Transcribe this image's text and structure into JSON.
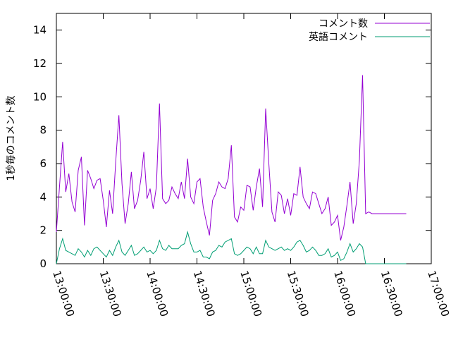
{
  "chart_data": {
    "type": "line",
    "ylabel": "1秒毎のコメント数",
    "xlim": [
      "13:00:00",
      "17:00:00"
    ],
    "ylim": [
      0,
      15
    ],
    "xticks": [
      "13:00:00",
      "13:30:00",
      "14:00:00",
      "14:30:00",
      "15:00:00",
      "15:30:00",
      "16:00:00",
      "16:30:00",
      "17:00:00"
    ],
    "yticks": [
      0,
      2,
      4,
      6,
      8,
      10,
      12,
      14
    ],
    "grid": false,
    "legend_position": "top-right",
    "x": [
      "13:00:00",
      "13:02:00",
      "13:04:00",
      "13:06:00",
      "13:08:00",
      "13:10:00",
      "13:12:00",
      "13:14:00",
      "13:16:00",
      "13:18:00",
      "13:20:00",
      "13:22:00",
      "13:24:00",
      "13:26:00",
      "13:28:00",
      "13:30:00",
      "13:32:00",
      "13:34:00",
      "13:36:00",
      "13:38:00",
      "13:40:00",
      "13:42:00",
      "13:44:00",
      "13:46:00",
      "13:48:00",
      "13:50:00",
      "13:52:00",
      "13:54:00",
      "13:56:00",
      "13:58:00",
      "14:00:00",
      "14:02:00",
      "14:04:00",
      "14:06:00",
      "14:08:00",
      "14:10:00",
      "14:12:00",
      "14:14:00",
      "14:16:00",
      "14:18:00",
      "14:20:00",
      "14:22:00",
      "14:24:00",
      "14:26:00",
      "14:28:00",
      "14:30:00",
      "14:32:00",
      "14:34:00",
      "14:36:00",
      "14:38:00",
      "14:40:00",
      "14:42:00",
      "14:44:00",
      "14:46:00",
      "14:48:00",
      "14:50:00",
      "14:52:00",
      "14:54:00",
      "14:56:00",
      "14:58:00",
      "15:00:00",
      "15:02:00",
      "15:04:00",
      "15:06:00",
      "15:08:00",
      "15:10:00",
      "15:12:00",
      "15:14:00",
      "15:16:00",
      "15:18:00",
      "15:20:00",
      "15:22:00",
      "15:24:00",
      "15:26:00",
      "15:28:00",
      "15:30:00",
      "15:32:00",
      "15:34:00",
      "15:36:00",
      "15:38:00",
      "15:40:00",
      "15:42:00",
      "15:44:00",
      "15:46:00",
      "15:48:00",
      "15:50:00",
      "15:52:00",
      "15:54:00",
      "15:56:00",
      "15:58:00",
      "16:00:00",
      "16:02:00",
      "16:04:00",
      "16:06:00",
      "16:08:00",
      "16:10:00",
      "16:12:00",
      "16:14:00",
      "16:16:00",
      "16:18:00",
      "16:20:00",
      "16:22:00",
      "16:24:00",
      "16:26:00",
      "16:28:00",
      "16:30:00",
      "16:32:00",
      "16:34:00",
      "16:36:00",
      "16:38:00",
      "16:40:00",
      "16:42:00",
      "16:44:00"
    ],
    "series": [
      {
        "name": "コメント数",
        "color": "#9400d3",
        "values": [
          1.9,
          4.6,
          7.3,
          4.3,
          5.4,
          3.7,
          3.1,
          5.6,
          6.4,
          2.3,
          5.6,
          5.1,
          4.5,
          5.0,
          5.1,
          3.8,
          2.2,
          4.4,
          3.0,
          6.1,
          8.9,
          4.8,
          2.4,
          3.6,
          5.5,
          3.3,
          3.8,
          5.0,
          6.7,
          3.9,
          4.5,
          3.3,
          4.6,
          9.6,
          3.9,
          3.6,
          3.8,
          4.6,
          4.2,
          3.9,
          4.9,
          3.9,
          6.3,
          4.0,
          3.6,
          4.9,
          5.1,
          3.4,
          2.5,
          1.7,
          3.8,
          4.2,
          4.9,
          4.6,
          4.5,
          5.1,
          7.1,
          2.8,
          2.5,
          3.4,
          3.2,
          4.7,
          4.6,
          3.2,
          4.6,
          5.7,
          3.4,
          9.3,
          6.0,
          3.1,
          2.5,
          4.3,
          4.1,
          3.0,
          3.9,
          2.9,
          4.2,
          4.1,
          5.8,
          4.0,
          3.6,
          3.3,
          4.3,
          4.2,
          3.6,
          3.0,
          3.3,
          4.0,
          2.3,
          2.5,
          2.9,
          1.4,
          2.2,
          3.5,
          4.9,
          2.4,
          3.6,
          6.2,
          11.3,
          3.0,
          3.1,
          3.0,
          3.0,
          3.0,
          3.0,
          3.0,
          3.0,
          3.0,
          3.0,
          3.0,
          3.0,
          3.0,
          3.0
        ]
      },
      {
        "name": "英語コメント",
        "color": "#009e73",
        "values": [
          0.0,
          0.9,
          1.5,
          0.8,
          0.7,
          0.6,
          0.5,
          0.9,
          0.7,
          0.4,
          0.8,
          0.5,
          0.9,
          1.0,
          0.8,
          0.6,
          0.4,
          0.8,
          0.5,
          1.0,
          1.4,
          0.7,
          0.5,
          0.8,
          1.1,
          0.5,
          0.6,
          0.8,
          1.0,
          0.7,
          0.8,
          0.6,
          0.8,
          1.4,
          0.9,
          0.8,
          1.1,
          0.9,
          0.9,
          0.9,
          1.1,
          1.2,
          1.9,
          1.2,
          0.7,
          0.7,
          0.8,
          0.4,
          0.4,
          0.3,
          0.7,
          0.8,
          1.1,
          1.0,
          1.3,
          1.4,
          1.5,
          0.6,
          0.5,
          0.6,
          0.8,
          1.0,
          0.9,
          0.6,
          1.0,
          0.6,
          0.6,
          1.4,
          1.0,
          0.9,
          0.8,
          0.9,
          1.0,
          0.8,
          0.9,
          0.8,
          1.0,
          1.3,
          1.4,
          1.1,
          0.7,
          0.8,
          1.0,
          0.8,
          0.5,
          0.5,
          0.6,
          0.9,
          0.4,
          0.5,
          0.7,
          0.2,
          0.3,
          0.7,
          1.2,
          0.7,
          0.9,
          1.2,
          1.0,
          0.0,
          0.0,
          0.0,
          0.0,
          0.0,
          0.0,
          0.0,
          0.0,
          0.0,
          0.0,
          0.0,
          0.0,
          0.0,
          0.0
        ]
      }
    ]
  }
}
